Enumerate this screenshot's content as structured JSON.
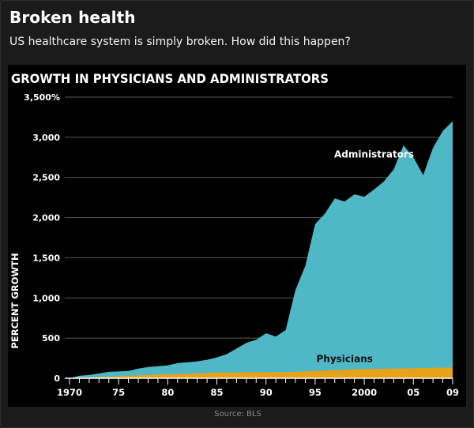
{
  "header": {
    "title": "Broken health",
    "subtitle": "US healthcare system is simply broken. How did this happen?"
  },
  "footer": {
    "source": "Source: BLS"
  },
  "colors": {
    "background": "#1b1b1b",
    "panel": "#000000",
    "administrators": "#4fb8c6",
    "physicians": "#e8a21a",
    "gridline": "#5a5a5a",
    "axis_text": "#ffffff"
  },
  "chart_data": {
    "type": "area",
    "title": "GROWTH IN PHYSICIANS AND ADMINISTRATORS",
    "ylabel": "PERCENT GROWTH",
    "xlabel": "",
    "ylim": [
      0,
      3500
    ],
    "xlim": [
      1970,
      2009
    ],
    "grid": true,
    "y_ticks": [
      {
        "value": 0,
        "label": "0"
      },
      {
        "value": 500,
        "label": "500"
      },
      {
        "value": 1000,
        "label": "1,000"
      },
      {
        "value": 1500,
        "label": "1,500"
      },
      {
        "value": 2000,
        "label": "2,000"
      },
      {
        "value": 2500,
        "label": "2,500"
      },
      {
        "value": 3000,
        "label": "3,000"
      },
      {
        "value": 3500,
        "label": "3,500%"
      }
    ],
    "x_ticks": [
      {
        "value": 1970,
        "label": "1970"
      },
      {
        "value": 1975,
        "label": "75"
      },
      {
        "value": 1980,
        "label": "80"
      },
      {
        "value": 1985,
        "label": "85"
      },
      {
        "value": 1990,
        "label": "90"
      },
      {
        "value": 1995,
        "label": "95"
      },
      {
        "value": 2000,
        "label": "2000"
      },
      {
        "value": 2005,
        "label": "05"
      },
      {
        "value": 2009,
        "label": "09"
      }
    ],
    "x": [
      1970,
      1971,
      1972,
      1973,
      1974,
      1975,
      1976,
      1977,
      1978,
      1979,
      1980,
      1981,
      1982,
      1983,
      1984,
      1985,
      1986,
      1987,
      1988,
      1989,
      1990,
      1991,
      1992,
      1993,
      1994,
      1995,
      1996,
      1997,
      1998,
      1999,
      2000,
      2001,
      2002,
      2003,
      2004,
      2005,
      2006,
      2007,
      2008,
      2009
    ],
    "series": [
      {
        "name": "Administrators",
        "values": [
          0,
          30,
          40,
          60,
          80,
          85,
          90,
          120,
          140,
          150,
          160,
          190,
          200,
          210,
          230,
          260,
          300,
          370,
          440,
          480,
          560,
          520,
          600,
          1100,
          1400,
          1920,
          2050,
          2240,
          2200,
          2290,
          2260,
          2350,
          2450,
          2600,
          2900,
          2750,
          2530,
          2870,
          3080,
          3200
        ]
      },
      {
        "name": "Physicians",
        "values": [
          0,
          5,
          10,
          15,
          20,
          25,
          30,
          35,
          40,
          45,
          50,
          52,
          55,
          60,
          65,
          70,
          70,
          72,
          74,
          75,
          75,
          76,
          77,
          80,
          85,
          90,
          95,
          100,
          105,
          110,
          115,
          115,
          118,
          120,
          122,
          125,
          128,
          130,
          132,
          135
        ]
      }
    ],
    "annotations": [
      {
        "text": "Administrators",
        "x": 2001,
        "y": 2750
      },
      {
        "text": "Physicians",
        "x": 1998,
        "y": 200
      }
    ]
  }
}
